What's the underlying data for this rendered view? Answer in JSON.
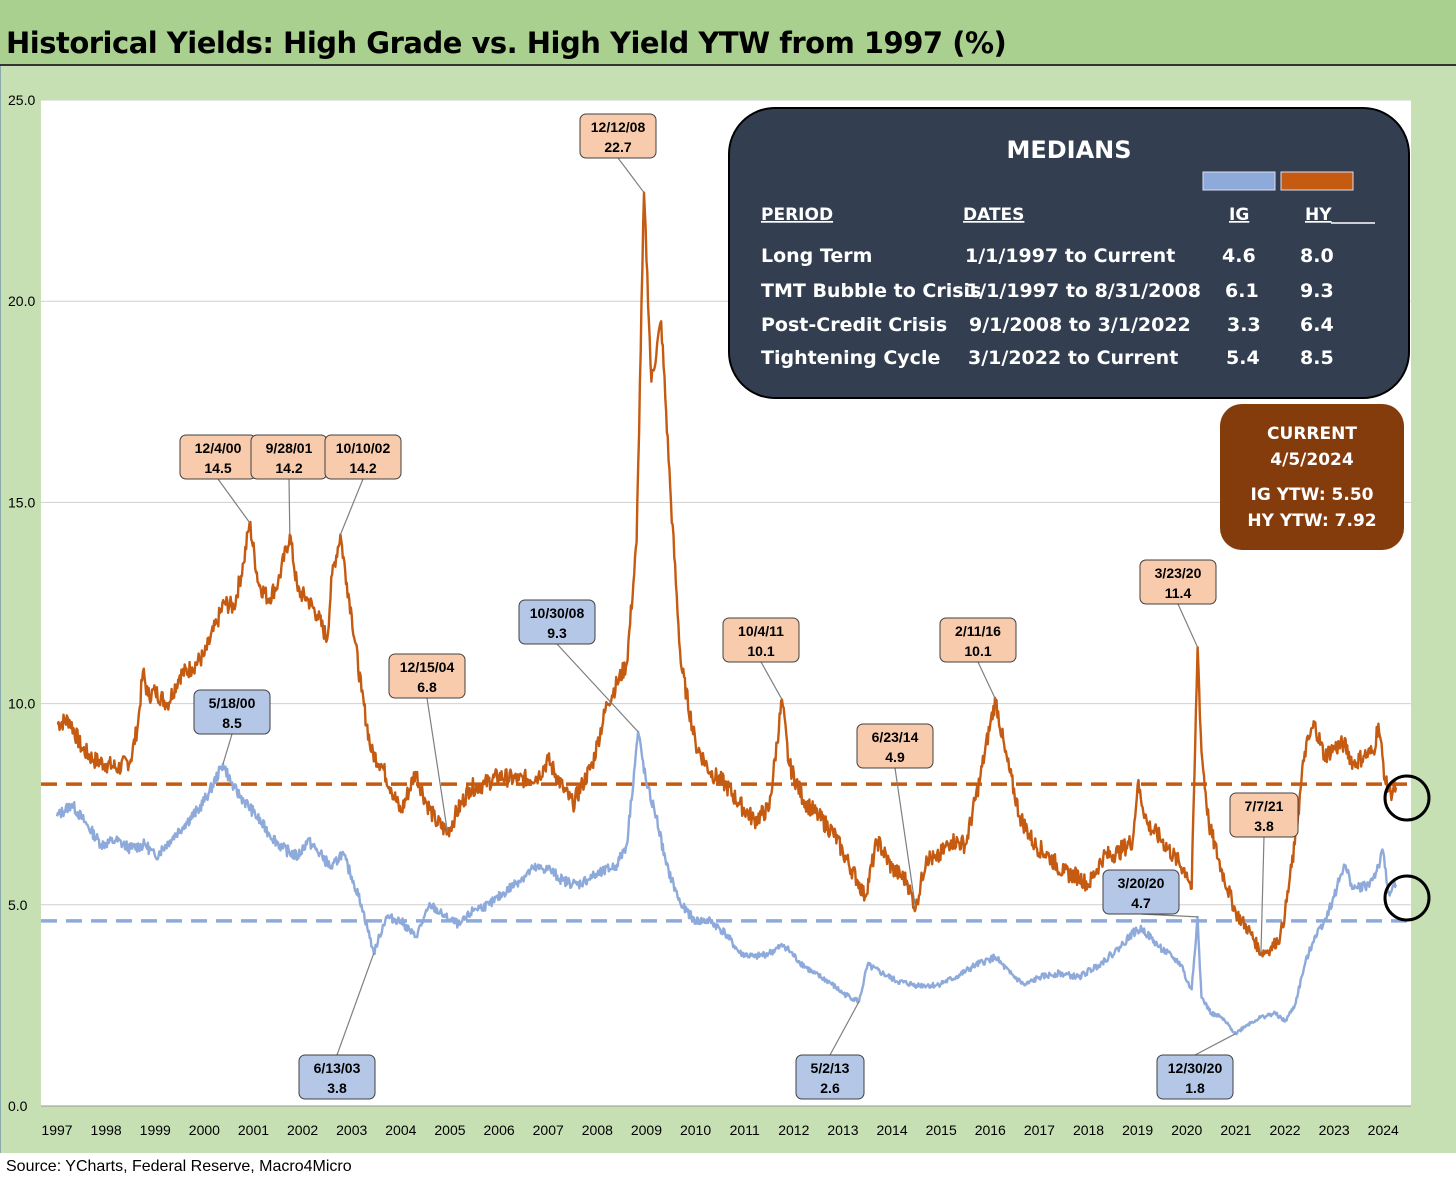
{
  "title": "Historical Yields: High Grade vs. High Yield YTW from 1997 (%)",
  "source": "Source: YCharts, Federal Reserve, Macro4Micro",
  "colors": {
    "ig": "#8eaadb",
    "hy": "#c55a11",
    "callout_ig": "#b4c7e7",
    "callout_hy": "#f8cbad",
    "medians_box": "#333f50",
    "current_box": "#843c0c",
    "panel": "#c6e0b4",
    "title_bar": "#a9d08e"
  },
  "chart_data": {
    "type": "line",
    "title": "Historical Yields: High Grade vs. High Yield YTW from 1997 (%)",
    "xlabel": "",
    "ylabel": "",
    "ylim": [
      0,
      25
    ],
    "xlim": [
      1997,
      2024.3
    ],
    "yticks": [
      "25.0",
      "20.0",
      "15.0",
      "10.0",
      "5.0",
      "0.0"
    ],
    "xticks": [
      "1997",
      "1998",
      "1999",
      "2000",
      "2001",
      "2002",
      "2003",
      "2004",
      "2005",
      "2006",
      "2007",
      "2008",
      "2009",
      "2010",
      "2011",
      "2012",
      "2013",
      "2014",
      "2015",
      "2016",
      "2017",
      "2018",
      "2019",
      "2020",
      "2021",
      "2022",
      "2023",
      "2024"
    ],
    "grid": "horizontal",
    "series": [
      {
        "key": "hy",
        "x": [
          1997.0,
          1997.25,
          1997.5,
          1997.75,
          1998.0,
          1998.25,
          1998.5,
          1998.65,
          1998.75,
          1998.85,
          1999.0,
          1999.25,
          1999.5,
          1999.75,
          2000.0,
          2000.25,
          2000.4,
          2000.6,
          2000.8,
          2000.92,
          2001.1,
          2001.3,
          2001.5,
          2001.74,
          2001.9,
          2002.1,
          2002.3,
          2002.5,
          2002.6,
          2002.77,
          2002.9,
          2003.0,
          2003.2,
          2003.4,
          2003.6,
          2003.8,
          2004.0,
          2004.3,
          2004.5,
          2004.7,
          2004.95,
          2005.1,
          2005.4,
          2005.7,
          2006.0,
          2006.4,
          2006.8,
          2007.0,
          2007.3,
          2007.5,
          2007.7,
          2007.9,
          2008.0,
          2008.2,
          2008.4,
          2008.6,
          2008.8,
          2008.95,
          2009.1,
          2009.3,
          2009.5,
          2009.7,
          2010.0,
          2010.3,
          2010.6,
          2010.9,
          2011.2,
          2011.5,
          2011.76,
          2011.9,
          2012.2,
          2012.5,
          2012.8,
          2013.0,
          2013.3,
          2013.45,
          2013.7,
          2014.0,
          2014.3,
          2014.48,
          2014.7,
          2014.9,
          2015.2,
          2015.5,
          2015.8,
          2016.0,
          2016.11,
          2016.3,
          2016.6,
          2016.9,
          2017.2,
          2017.5,
          2017.8,
          2018.0,
          2018.3,
          2018.6,
          2018.9,
          2019.0,
          2019.2,
          2019.5,
          2019.8,
          2020.0,
          2020.1,
          2020.22,
          2020.3,
          2020.45,
          2020.7,
          2021.0,
          2021.3,
          2021.51,
          2021.7,
          2021.9,
          2022.0,
          2022.2,
          2022.4,
          2022.6,
          2022.8,
          2023.0,
          2023.2,
          2023.4,
          2023.6,
          2023.8,
          2023.9,
          2024.05,
          2024.15,
          2024.26
        ],
        "y": [
          9.5,
          9.6,
          8.9,
          8.6,
          8.5,
          8.4,
          8.6,
          9.5,
          10.8,
          10.2,
          10.3,
          10.0,
          10.7,
          10.9,
          11.2,
          12.0,
          12.5,
          12.4,
          13.5,
          14.5,
          13.0,
          12.6,
          13.0,
          14.2,
          12.8,
          12.6,
          12.2,
          11.6,
          13.2,
          14.2,
          13.0,
          12.2,
          10.3,
          8.8,
          8.5,
          7.9,
          7.3,
          8.3,
          7.6,
          7.1,
          6.8,
          7.2,
          7.9,
          8.0,
          8.2,
          8.1,
          8.2,
          8.6,
          7.9,
          7.5,
          8.0,
          8.5,
          9.0,
          10.0,
          10.5,
          11.0,
          14.0,
          22.7,
          18.0,
          19.5,
          15.0,
          11.0,
          9.0,
          8.3,
          8.0,
          7.5,
          7.1,
          7.4,
          10.1,
          8.5,
          7.6,
          7.2,
          6.8,
          6.3,
          5.6,
          5.2,
          6.6,
          5.9,
          5.6,
          4.9,
          6.2,
          6.1,
          6.6,
          6.5,
          8.2,
          9.5,
          10.1,
          8.8,
          7.2,
          6.5,
          6.2,
          5.8,
          5.7,
          5.5,
          6.2,
          6.3,
          6.6,
          8.0,
          7.0,
          6.6,
          6.1,
          5.8,
          5.4,
          11.4,
          8.8,
          7.0,
          5.9,
          4.8,
          4.3,
          3.8,
          3.9,
          4.2,
          4.8,
          6.5,
          8.8,
          9.5,
          8.7,
          8.9,
          9.0,
          8.5,
          8.7,
          8.8,
          9.5,
          8.0,
          7.8,
          7.92
        ]
      },
      {
        "key": "ig",
        "x": [
          1997.0,
          1997.3,
          1997.6,
          1997.9,
          1998.2,
          1998.5,
          1998.8,
          1999.0,
          1999.3,
          1999.6,
          1999.9,
          2000.1,
          2000.38,
          2000.6,
          2000.8,
          2001.0,
          2001.3,
          2001.6,
          2001.9,
          2002.1,
          2002.4,
          2002.6,
          2002.8,
          2003.0,
          2003.2,
          2003.45,
          2003.7,
          2004.0,
          2004.3,
          2004.6,
          2004.9,
          2005.2,
          2005.5,
          2005.8,
          2006.1,
          2006.4,
          2006.7,
          2007.0,
          2007.3,
          2007.6,
          2007.9,
          2008.1,
          2008.4,
          2008.6,
          2008.83,
          2009.0,
          2009.2,
          2009.4,
          2009.7,
          2010.0,
          2010.3,
          2010.6,
          2010.9,
          2011.2,
          2011.5,
          2011.8,
          2012.1,
          2012.4,
          2012.7,
          2013.0,
          2013.33,
          2013.5,
          2013.8,
          2014.1,
          2014.5,
          2014.9,
          2015.3,
          2015.7,
          2016.1,
          2016.4,
          2016.7,
          2017.0,
          2017.4,
          2017.8,
          2018.2,
          2018.6,
          2018.9,
          2019.1,
          2019.4,
          2019.7,
          2019.9,
          2020.0,
          2020.1,
          2020.22,
          2020.3,
          2020.5,
          2020.7,
          2020.998,
          2021.2,
          2021.5,
          2021.8,
          2022.0,
          2022.2,
          2022.4,
          2022.6,
          2022.8,
          2023.0,
          2023.2,
          2023.4,
          2023.7,
          2023.85,
          2024.0,
          2024.1,
          2024.26
        ],
        "y": [
          7.2,
          7.5,
          7.0,
          6.5,
          6.6,
          6.4,
          6.5,
          6.2,
          6.6,
          7.0,
          7.4,
          7.8,
          8.5,
          7.9,
          7.6,
          7.3,
          6.8,
          6.4,
          6.2,
          6.6,
          6.2,
          5.9,
          6.3,
          5.7,
          5.0,
          3.8,
          4.7,
          4.6,
          4.2,
          5.0,
          4.7,
          4.5,
          4.9,
          5.0,
          5.3,
          5.6,
          5.9,
          5.9,
          5.6,
          5.5,
          5.7,
          5.8,
          6.0,
          6.5,
          9.3,
          8.0,
          7.2,
          6.0,
          5.0,
          4.6,
          4.6,
          4.3,
          3.8,
          3.7,
          3.8,
          4.0,
          3.6,
          3.3,
          3.1,
          2.8,
          2.6,
          3.5,
          3.3,
          3.1,
          3.0,
          3.0,
          3.2,
          3.5,
          3.7,
          3.3,
          3.0,
          3.2,
          3.3,
          3.2,
          3.5,
          3.9,
          4.3,
          4.4,
          4.0,
          3.7,
          3.5,
          3.1,
          2.9,
          4.7,
          2.7,
          2.3,
          2.2,
          1.8,
          2.0,
          2.2,
          2.3,
          2.1,
          2.5,
          3.5,
          4.2,
          4.6,
          5.2,
          6.0,
          5.4,
          5.5,
          5.8,
          6.3,
          5.3,
          5.5
        ]
      }
    ],
    "medians": {
      "ig": 4.6,
      "hy": 8.0
    },
    "callouts": [
      {
        "kind": "hy",
        "date": "12/12/08",
        "value": "22.7",
        "x": 2008.95,
        "y": 22.7
      },
      {
        "kind": "hy",
        "date": "12/4/00",
        "value": "14.5",
        "x": 2000.92,
        "y": 14.5
      },
      {
        "kind": "hy",
        "date": "9/28/01",
        "value": "14.2",
        "x": 2001.74,
        "y": 14.2
      },
      {
        "kind": "hy",
        "date": "10/10/02",
        "value": "14.2",
        "x": 2002.77,
        "y": 14.2
      },
      {
        "kind": "hy",
        "date": "12/15/04",
        "value": "6.8",
        "x": 2004.95,
        "y": 6.8
      },
      {
        "kind": "hy",
        "date": "10/4/11",
        "value": "10.1",
        "x": 2011.76,
        "y": 10.1
      },
      {
        "kind": "hy",
        "date": "6/23/14",
        "value": "4.9",
        "x": 2014.48,
        "y": 4.9
      },
      {
        "kind": "hy",
        "date": "2/11/16",
        "value": "10.1",
        "x": 2016.11,
        "y": 10.1
      },
      {
        "kind": "hy",
        "date": "3/23/20",
        "value": "11.4",
        "x": 2020.22,
        "y": 11.4
      },
      {
        "kind": "hy",
        "date": "7/7/21",
        "value": "3.8",
        "x": 2021.51,
        "y": 3.8
      },
      {
        "kind": "ig",
        "date": "5/18/00",
        "value": "8.5",
        "x": 2000.38,
        "y": 8.5
      },
      {
        "kind": "ig",
        "date": "10/30/08",
        "value": "9.3",
        "x": 2008.83,
        "y": 9.3
      },
      {
        "kind": "ig",
        "date": "6/13/03",
        "value": "3.8",
        "x": 2003.45,
        "y": 3.8
      },
      {
        "kind": "ig",
        "date": "5/2/13",
        "value": "2.6",
        "x": 2013.33,
        "y": 2.6
      },
      {
        "kind": "ig",
        "date": "3/20/20",
        "value": "4.7",
        "x": 2020.22,
        "y": 4.7
      },
      {
        "kind": "ig",
        "date": "12/30/20",
        "value": "1.8",
        "x": 2020.998,
        "y": 1.8
      }
    ]
  },
  "medians_box": {
    "heading": "MEDIANS",
    "columns": [
      "PERIOD",
      "DATES",
      "IG",
      "HY"
    ],
    "rows": [
      {
        "period": "Long Term",
        "dates": "1/1/1997 to Current",
        "ig": "4.6",
        "hy": "8.0"
      },
      {
        "period": "TMT Bubble to Crisis",
        "dates": "1/1/1997 to 8/31/2008",
        "ig": "6.1",
        "hy": "9.3"
      },
      {
        "period": "Post-Credit Crisis",
        "dates": "9/1/2008 to 3/1/2022",
        "ig": "3.3",
        "hy": "6.4"
      },
      {
        "period": "Tightening Cycle",
        "dates": "3/1/2022 to Current",
        "ig": "5.4",
        "hy": "8.5"
      }
    ]
  },
  "current_box": {
    "heading": "CURRENT",
    "date": "4/5/2024",
    "ig": "IG YTW: 5.50",
    "hy": "HY YTW: 7.92"
  }
}
